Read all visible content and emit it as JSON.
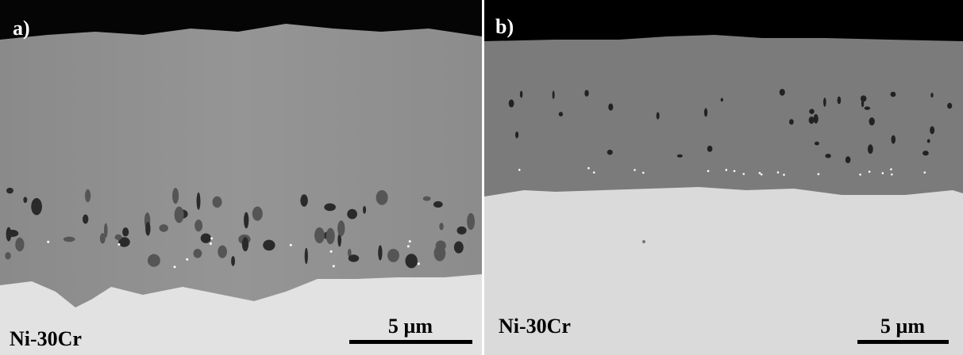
{
  "panels": [
    {
      "label": "a)",
      "sample": "Ni-30Cr",
      "scale_bar": "5 µm"
    },
    {
      "label": "b)",
      "sample": "Ni-30Cr",
      "scale_bar": "5 µm"
    }
  ]
}
